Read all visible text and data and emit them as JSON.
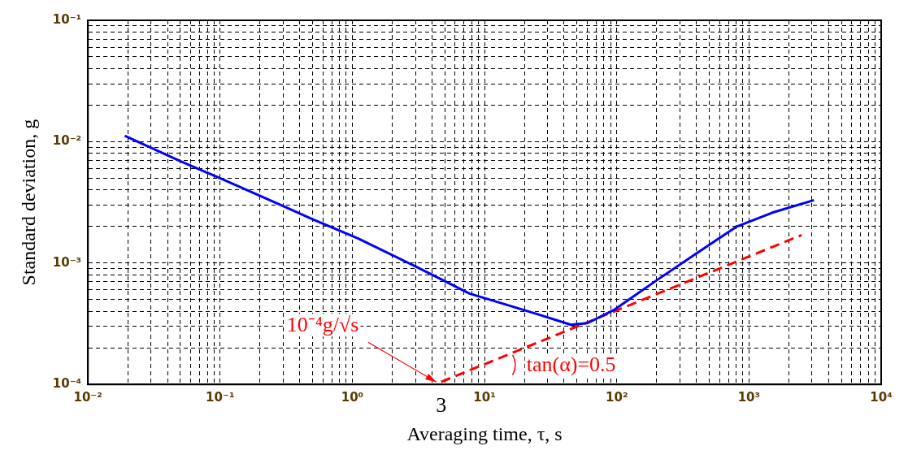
{
  "chart_data": {
    "type": "line",
    "xlabel": "Averaging time, τ, s",
    "ylabel": "Standard deviation, g",
    "log": "xy",
    "grid": true,
    "marker": "none",
    "xlim": [
      0.01,
      10000
    ],
    "ylim": [
      0.0001,
      0.1
    ],
    "xticks": [
      {
        "value": 0.01,
        "label": "10⁻²"
      },
      {
        "value": 0.02,
        "label": null
      },
      {
        "value": 0.03,
        "label": null
      },
      {
        "value": 0.04,
        "label": null
      },
      {
        "value": 0.05,
        "label": null
      },
      {
        "value": 0.06,
        "label": null
      },
      {
        "value": 0.07,
        "label": null
      },
      {
        "value": 0.08,
        "label": null
      },
      {
        "value": 0.09,
        "label": null
      },
      {
        "value": 0.1,
        "label": "10⁻¹"
      },
      {
        "value": 0.2,
        "label": null
      },
      {
        "value": 0.3,
        "label": null
      },
      {
        "value": 0.4,
        "label": null
      },
      {
        "value": 0.5,
        "label": null
      },
      {
        "value": 0.6,
        "label": null
      },
      {
        "value": 0.7,
        "label": null
      },
      {
        "value": 0.8,
        "label": null
      },
      {
        "value": 0.9,
        "label": null
      },
      {
        "value": 1,
        "label": "10⁰"
      },
      {
        "value": 2,
        "label": null
      },
      {
        "value": 3,
        "label": null
      },
      {
        "value": 4,
        "label": null
      },
      {
        "value": 5,
        "label": null
      },
      {
        "value": 6,
        "label": null
      },
      {
        "value": 7,
        "label": null
      },
      {
        "value": 8,
        "label": null
      },
      {
        "value": 9,
        "label": null
      },
      {
        "value": 10,
        "label": "10¹"
      },
      {
        "value": 20,
        "label": null
      },
      {
        "value": 30,
        "label": null
      },
      {
        "value": 40,
        "label": null
      },
      {
        "value": 50,
        "label": null
      },
      {
        "value": 60,
        "label": null
      },
      {
        "value": 70,
        "label": null
      },
      {
        "value": 80,
        "label": null
      },
      {
        "value": 90,
        "label": null
      },
      {
        "value": 100,
        "label": "10²"
      },
      {
        "value": 200,
        "label": null
      },
      {
        "value": 300,
        "label": null
      },
      {
        "value": 400,
        "label": null
      },
      {
        "value": 500,
        "label": null
      },
      {
        "value": 600,
        "label": null
      },
      {
        "value": 700,
        "label": null
      },
      {
        "value": 800,
        "label": null
      },
      {
        "value": 900,
        "label": null
      },
      {
        "value": 1000,
        "label": "10³"
      },
      {
        "value": 2000,
        "label": null
      },
      {
        "value": 3000,
        "label": null
      },
      {
        "value": 4000,
        "label": null
      },
      {
        "value": 5000,
        "label": null
      },
      {
        "value": 6000,
        "label": null
      },
      {
        "value": 7000,
        "label": null
      },
      {
        "value": 8000,
        "label": null
      },
      {
        "value": 9000,
        "label": null
      },
      {
        "value": 10000,
        "label": "10⁴"
      }
    ],
    "yticks": [
      {
        "value": 0.0001,
        "label": "10⁻⁴"
      },
      {
        "value": 0.0002,
        "label": null
      },
      {
        "value": 0.0003,
        "label": null
      },
      {
        "value": 0.0004,
        "label": null
      },
      {
        "value": 0.0005,
        "label": null
      },
      {
        "value": 0.0006,
        "label": null
      },
      {
        "value": 0.0007,
        "label": null
      },
      {
        "value": 0.0008,
        "label": null
      },
      {
        "value": 0.0009,
        "label": null
      },
      {
        "value": 0.001,
        "label": "10⁻³"
      },
      {
        "value": 0.002,
        "label": null
      },
      {
        "value": 0.003,
        "label": null
      },
      {
        "value": 0.004,
        "label": null
      },
      {
        "value": 0.005,
        "label": null
      },
      {
        "value": 0.006,
        "label": null
      },
      {
        "value": 0.007,
        "label": null
      },
      {
        "value": 0.008,
        "label": null
      },
      {
        "value": 0.009,
        "label": null
      },
      {
        "value": 0.01,
        "label": "10⁻²"
      },
      {
        "value": 0.02,
        "label": null
      },
      {
        "value": 0.03,
        "label": null
      },
      {
        "value": 0.04,
        "label": null
      },
      {
        "value": 0.05,
        "label": null
      },
      {
        "value": 0.06,
        "label": null
      },
      {
        "value": 0.07,
        "label": null
      },
      {
        "value": 0.08,
        "label": null
      },
      {
        "value": 0.09,
        "label": null
      },
      {
        "value": 0.1,
        "label": "10⁻¹"
      }
    ],
    "series": [
      {
        "color": "#0000ff",
        "line_style": "solid",
        "x": [
          0.019,
          0.05,
          0.1,
          0.27,
          0.5,
          1.1,
          3,
          7.7,
          15,
          25,
          45,
          60,
          95,
          200,
          400,
          810,
          1500,
          3100
        ],
        "values": [
          0.0112,
          0.0069,
          0.005,
          0.0031,
          0.0023,
          0.0016,
          0.00094,
          0.00056,
          0.00045,
          0.00038,
          0.00031,
          0.00032,
          0.00041,
          0.00072,
          0.0012,
          0.002,
          0.0026,
          0.0033
        ]
      },
      {
        "color": "#ff0000",
        "line_style": "dashed",
        "x": [
          4.7,
          2500
        ],
        "values": [
          0.000105,
          0.0017
        ]
      }
    ],
    "annotations": [
      {
        "text": "10⁻⁴g/√s",
        "x": 4.7,
        "y": 0.0001
      },
      "tan(α)=0.5",
      "3"
    ]
  }
}
